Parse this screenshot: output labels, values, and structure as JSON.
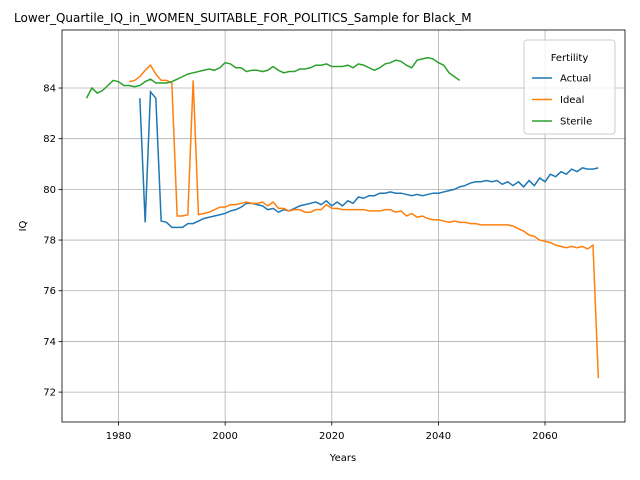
{
  "chart_data": {
    "type": "line",
    "title": "Lower_Quartile_IQ_in_WOMEN_SUITABLE_FOR_POLITICS_Sample for Black_M",
    "xlabel": "Years",
    "ylabel": "IQ",
    "legend_title": "Fertility",
    "legend": "upper right",
    "grid": true,
    "xlim": [
      1969.4,
      2075
    ],
    "ylim": [
      70.82,
      86.29
    ],
    "xticks": [
      1980,
      2000,
      2020,
      2040,
      2060
    ],
    "yticks": [
      72,
      74,
      76,
      78,
      80,
      82,
      84
    ],
    "x": [
      1974,
      1975,
      1976,
      1977,
      1978,
      1979,
      1980,
      1981,
      1982,
      1983,
      1984,
      1985,
      1986,
      1987,
      1988,
      1989,
      1990,
      1991,
      1992,
      1993,
      1994,
      1995,
      1996,
      1997,
      1998,
      1999,
      2000,
      2001,
      2002,
      2003,
      2004,
      2005,
      2006,
      2007,
      2008,
      2009,
      2010,
      2011,
      2012,
      2013,
      2014,
      2015,
      2016,
      2017,
      2018,
      2019,
      2020,
      2021,
      2022,
      2023,
      2024,
      2025,
      2026,
      2027,
      2028,
      2029,
      2030,
      2031,
      2032,
      2033,
      2034,
      2035,
      2036,
      2037,
      2038,
      2039,
      2040,
      2041,
      2042,
      2043,
      2044,
      2045,
      2046,
      2047,
      2048,
      2049,
      2050,
      2051,
      2052,
      2053,
      2054,
      2055,
      2056,
      2057,
      2058,
      2059,
      2060,
      2061,
      2062,
      2063,
      2064,
      2065,
      2066,
      2067,
      2068,
      2069,
      2070
    ],
    "series": [
      {
        "name": "Actual",
        "color": "#1f77b4",
        "values": [
          null,
          null,
          null,
          null,
          null,
          null,
          null,
          null,
          null,
          null,
          83.6,
          78.7,
          83.85,
          83.6,
          78.75,
          78.7,
          78.5,
          78.5,
          78.5,
          78.65,
          78.65,
          78.75,
          78.85,
          78.9,
          78.95,
          79.0,
          79.05,
          79.15,
          79.2,
          79.3,
          79.45,
          79.45,
          79.4,
          79.35,
          79.2,
          79.25,
          79.1,
          79.2,
          79.15,
          79.25,
          79.35,
          79.4,
          79.45,
          79.5,
          79.4,
          79.55,
          79.35,
          79.5,
          79.35,
          79.55,
          79.45,
          79.7,
          79.65,
          79.75,
          79.75,
          79.85,
          79.85,
          79.9,
          79.85,
          79.85,
          79.8,
          79.75,
          79.8,
          79.75,
          79.8,
          79.85,
          79.85,
          79.9,
          79.95,
          80.0,
          80.1,
          80.15,
          80.25,
          80.3,
          80.3,
          80.35,
          80.3,
          80.35,
          80.2,
          80.3,
          80.15,
          80.3,
          80.1,
          80.35,
          80.15,
          80.45,
          80.3,
          80.6,
          80.5,
          80.7,
          80.6,
          80.8,
          80.7,
          80.85,
          80.8,
          80.8,
          80.85
        ]
      },
      {
        "name": "Ideal",
        "color": "#ff7f0e",
        "values": [
          null,
          null,
          null,
          null,
          null,
          null,
          null,
          null,
          84.25,
          84.3,
          84.45,
          84.7,
          84.9,
          84.55,
          84.3,
          84.3,
          84.2,
          78.95,
          78.95,
          79.0,
          84.3,
          79.0,
          79.05,
          79.1,
          79.2,
          79.3,
          79.3,
          79.4,
          79.4,
          79.45,
          79.5,
          79.45,
          79.45,
          79.5,
          79.35,
          79.5,
          79.25,
          79.25,
          79.15,
          79.2,
          79.2,
          79.1,
          79.1,
          79.2,
          79.2,
          79.4,
          79.25,
          79.25,
          79.2,
          79.2,
          79.2,
          79.2,
          79.2,
          79.15,
          79.15,
          79.15,
          79.2,
          79.2,
          79.1,
          79.15,
          78.95,
          79.05,
          78.9,
          78.95,
          78.85,
          78.8,
          78.8,
          78.75,
          78.7,
          78.75,
          78.7,
          78.7,
          78.65,
          78.65,
          78.6,
          78.6,
          78.6,
          78.6,
          78.6,
          78.6,
          78.55,
          78.45,
          78.35,
          78.2,
          78.15,
          78.0,
          77.95,
          77.9,
          77.8,
          77.75,
          77.7,
          77.75,
          77.7,
          77.75,
          77.65,
          77.8,
          72.55
        ]
      },
      {
        "name": "Sterile",
        "color": "#2ca02c",
        "values": [
          83.6,
          84.0,
          83.8,
          83.9,
          84.1,
          84.3,
          84.25,
          84.1,
          84.1,
          84.05,
          84.1,
          84.25,
          84.35,
          84.2,
          84.2,
          84.2,
          84.25,
          84.35,
          84.45,
          84.55,
          84.6,
          84.65,
          84.7,
          84.75,
          84.7,
          84.8,
          85.0,
          84.95,
          84.8,
          84.8,
          84.65,
          84.7,
          84.7,
          84.65,
          84.7,
          84.85,
          84.7,
          84.6,
          84.65,
          84.65,
          84.75,
          84.75,
          84.8,
          84.9,
          84.9,
          84.95,
          84.85,
          84.85,
          84.85,
          84.9,
          84.8,
          84.95,
          84.9,
          84.8,
          84.7,
          84.8,
          84.95,
          85.0,
          85.1,
          85.05,
          84.9,
          84.8,
          85.1,
          85.15,
          85.2,
          85.15,
          85.0,
          84.9,
          84.6,
          84.45,
          84.3,
          null,
          null,
          null,
          null,
          null,
          null,
          null,
          null,
          null,
          null,
          null,
          null,
          null,
          null,
          null,
          null,
          null,
          null,
          null,
          null,
          null,
          null,
          null,
          null,
          null,
          null
        ]
      }
    ]
  }
}
